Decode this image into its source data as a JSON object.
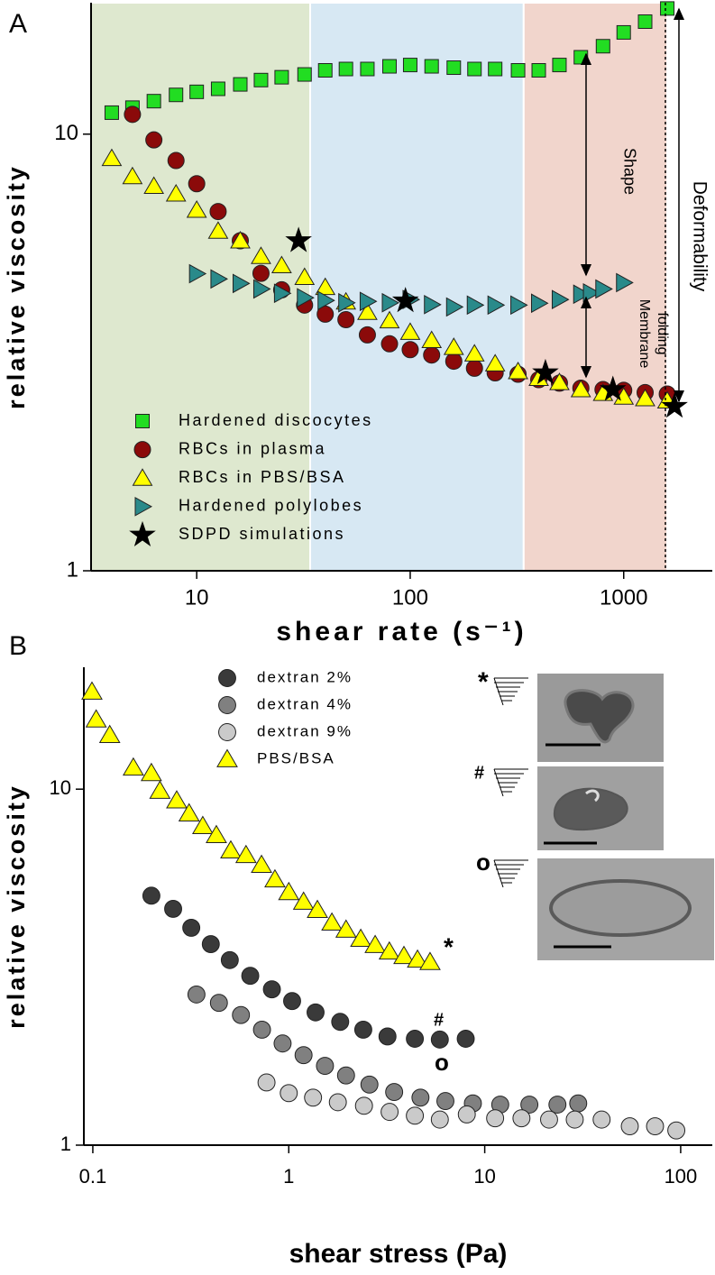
{
  "chart_data": [
    {
      "type": "scatter",
      "panel_label": "A",
      "x_label": "shear rate (s⁻¹)",
      "y_label": "relative viscosity",
      "log_x": true,
      "log_y": true,
      "xlim": [
        3.2,
        2600
      ],
      "ylim": [
        1,
        20
      ],
      "xticks": [
        10,
        100,
        1000
      ],
      "yticks": [
        1,
        10
      ],
      "shaded_regions": [
        {
          "xlim": [
            3.2,
            34
          ],
          "color": "#dee8cf"
        },
        {
          "xlim": [
            34,
            340
          ],
          "color": "#d7e8f3"
        },
        {
          "xlim": [
            340,
            1600
          ],
          "color": "#f1d5cc"
        }
      ],
      "annotations": [
        "Shape",
        "Membrane",
        "folding",
        "Deformability"
      ],
      "series": [
        {
          "name": "Hardened discocytes",
          "marker": "square",
          "color": "#22dd22",
          "x": [
            4,
            5,
            6.3,
            8,
            10,
            12.6,
            16,
            20,
            25,
            32,
            40,
            50,
            63,
            80,
            100,
            126,
            160,
            200,
            250,
            320,
            400,
            500,
            630,
            800,
            1000,
            1260,
            1600
          ],
          "values": [
            11.2,
            11.5,
            11.9,
            12.3,
            12.5,
            12.7,
            13.0,
            13.3,
            13.5,
            13.7,
            14.0,
            14.1,
            14.1,
            14.3,
            14.4,
            14.3,
            14.2,
            14.1,
            14.1,
            14.0,
            14.0,
            14.4,
            15.0,
            15.9,
            17.1,
            18.1,
            19.4
          ]
        },
        {
          "name": "RBCs in plasma",
          "marker": "circle",
          "color": "#8b0a0a",
          "x": [
            5,
            6.3,
            8,
            10,
            12.6,
            16,
            20,
            25,
            32,
            40,
            50,
            63,
            80,
            100,
            126,
            160,
            200,
            250,
            320,
            400,
            500,
            630,
            800,
            1000,
            1260,
            1600
          ],
          "values": [
            11.1,
            9.7,
            8.7,
            7.7,
            6.65,
            5.7,
            4.8,
            4.4,
            4.06,
            3.87,
            3.76,
            3.47,
            3.31,
            3.21,
            3.12,
            3.02,
            2.91,
            2.84,
            2.82,
            2.74,
            2.69,
            2.62,
            2.6,
            2.59,
            2.56,
            2.54
          ]
        },
        {
          "name": "RBCs in PBS/BSA",
          "marker": "triangle",
          "color": "#ffff00",
          "x": [
            4,
            5,
            6.3,
            8,
            10,
            12.6,
            16,
            20,
            25,
            32,
            40,
            50,
            63,
            80,
            100,
            126,
            160,
            200,
            250,
            320,
            400,
            500,
            630,
            800,
            1000,
            1260,
            1600
          ],
          "values": [
            8.8,
            8.0,
            7.6,
            7.3,
            6.7,
            6.0,
            5.7,
            5.25,
            5.0,
            4.7,
            4.46,
            4.13,
            3.91,
            3.74,
            3.52,
            3.37,
            3.25,
            3.14,
            2.98,
            2.86,
            2.76,
            2.7,
            2.6,
            2.55,
            2.5,
            2.48,
            2.45
          ]
        },
        {
          "name": "Hardened polylobes",
          "marker": "right-triangle",
          "color": "#2a8a8a",
          "x": [
            10,
            12.6,
            16,
            20,
            25,
            32,
            40,
            50,
            63,
            80,
            100,
            126,
            160,
            200,
            250,
            320,
            400,
            500,
            630,
            700,
            800,
            1000
          ],
          "values": [
            4.79,
            4.66,
            4.55,
            4.42,
            4.32,
            4.22,
            4.16,
            4.11,
            4.14,
            4.11,
            4.18,
            4.07,
            4.02,
            4.06,
            4.06,
            4.06,
            4.1,
            4.18,
            4.3,
            4.33,
            4.42,
            4.57
          ]
        },
        {
          "name": "SDPD simulations",
          "marker": "star",
          "color": "#000000",
          "x": [
            30,
            95,
            430,
            890,
            1730
          ],
          "values": [
            5.7,
            4.15,
            2.84,
            2.6,
            2.38
          ]
        }
      ]
    },
    {
      "type": "scatter",
      "panel_label": "B",
      "x_label": "shear stress (Pa)",
      "y_label": "relative viscosity",
      "log_x": true,
      "log_y": true,
      "xlim": [
        0.09,
        145
      ],
      "ylim": [
        1,
        22
      ],
      "xticks": [
        0.1,
        1,
        10,
        100
      ],
      "yticks": [
        1,
        10
      ],
      "annotations": [
        "*",
        "#",
        "o"
      ],
      "inset_labels": [
        "*",
        "#",
        "o"
      ],
      "series": [
        {
          "name": "dextran 2%",
          "marker": "circle",
          "color": "#3a3a3a",
          "x": [
            0.199,
            0.257,
            0.318,
            0.4,
            0.5,
            0.636,
            0.82,
            1.04,
            1.37,
            1.83,
            2.4,
            3.19,
            4.4,
            5.9,
            8.0
          ],
          "values": [
            5.02,
            4.61,
            4.08,
            3.67,
            3.31,
            2.99,
            2.74,
            2.54,
            2.36,
            2.22,
            2.11,
            2.02,
            1.99,
            1.98,
            1.99
          ]
        },
        {
          "name": "dextran 4%",
          "marker": "circle",
          "color": "#808080",
          "x": [
            0.338,
            0.44,
            0.57,
            0.73,
            0.93,
            1.19,
            1.53,
            1.96,
            2.58,
            3.45,
            4.7,
            6.3,
            8.7,
            12.0,
            16.9,
            23.5,
            30
          ],
          "values": [
            2.65,
            2.51,
            2.32,
            2.11,
            1.93,
            1.79,
            1.67,
            1.57,
            1.48,
            1.41,
            1.36,
            1.33,
            1.31,
            1.3,
            1.3,
            1.3,
            1.31
          ]
        },
        {
          "name": "dextran 9%",
          "marker": "circle",
          "color": "#cacaca",
          "x": [
            0.77,
            1.0,
            1.33,
            1.78,
            2.42,
            3.27,
            4.4,
            5.9,
            8.1,
            11.3,
            15.4,
            21.3,
            28.8,
            39.5,
            55,
            74,
            95
          ],
          "values": [
            1.5,
            1.4,
            1.36,
            1.32,
            1.29,
            1.24,
            1.21,
            1.18,
            1.22,
            1.19,
            1.19,
            1.18,
            1.18,
            1.18,
            1.13,
            1.13,
            1.1
          ]
        },
        {
          "name": "PBS/BSA",
          "marker": "triangle",
          "color": "#ffff00",
          "x": [
            0.099,
            0.104,
            0.122,
            0.161,
            0.199,
            0.22,
            0.268,
            0.31,
            0.364,
            0.427,
            0.506,
            0.605,
            0.726,
            0.85,
            1.0,
            1.19,
            1.4,
            1.66,
            1.96,
            2.33,
            2.76,
            3.26,
            3.87,
            4.54,
            5.26
          ],
          "values": [
            18.8,
            15.7,
            14.2,
            11.5,
            11.1,
            9.9,
            9.3,
            8.55,
            7.88,
            7.43,
            6.73,
            6.53,
            6.13,
            5.58,
            5.14,
            4.83,
            4.58,
            4.22,
            4.03,
            3.8,
            3.65,
            3.5,
            3.4,
            3.32,
            3.27
          ]
        }
      ]
    }
  ]
}
